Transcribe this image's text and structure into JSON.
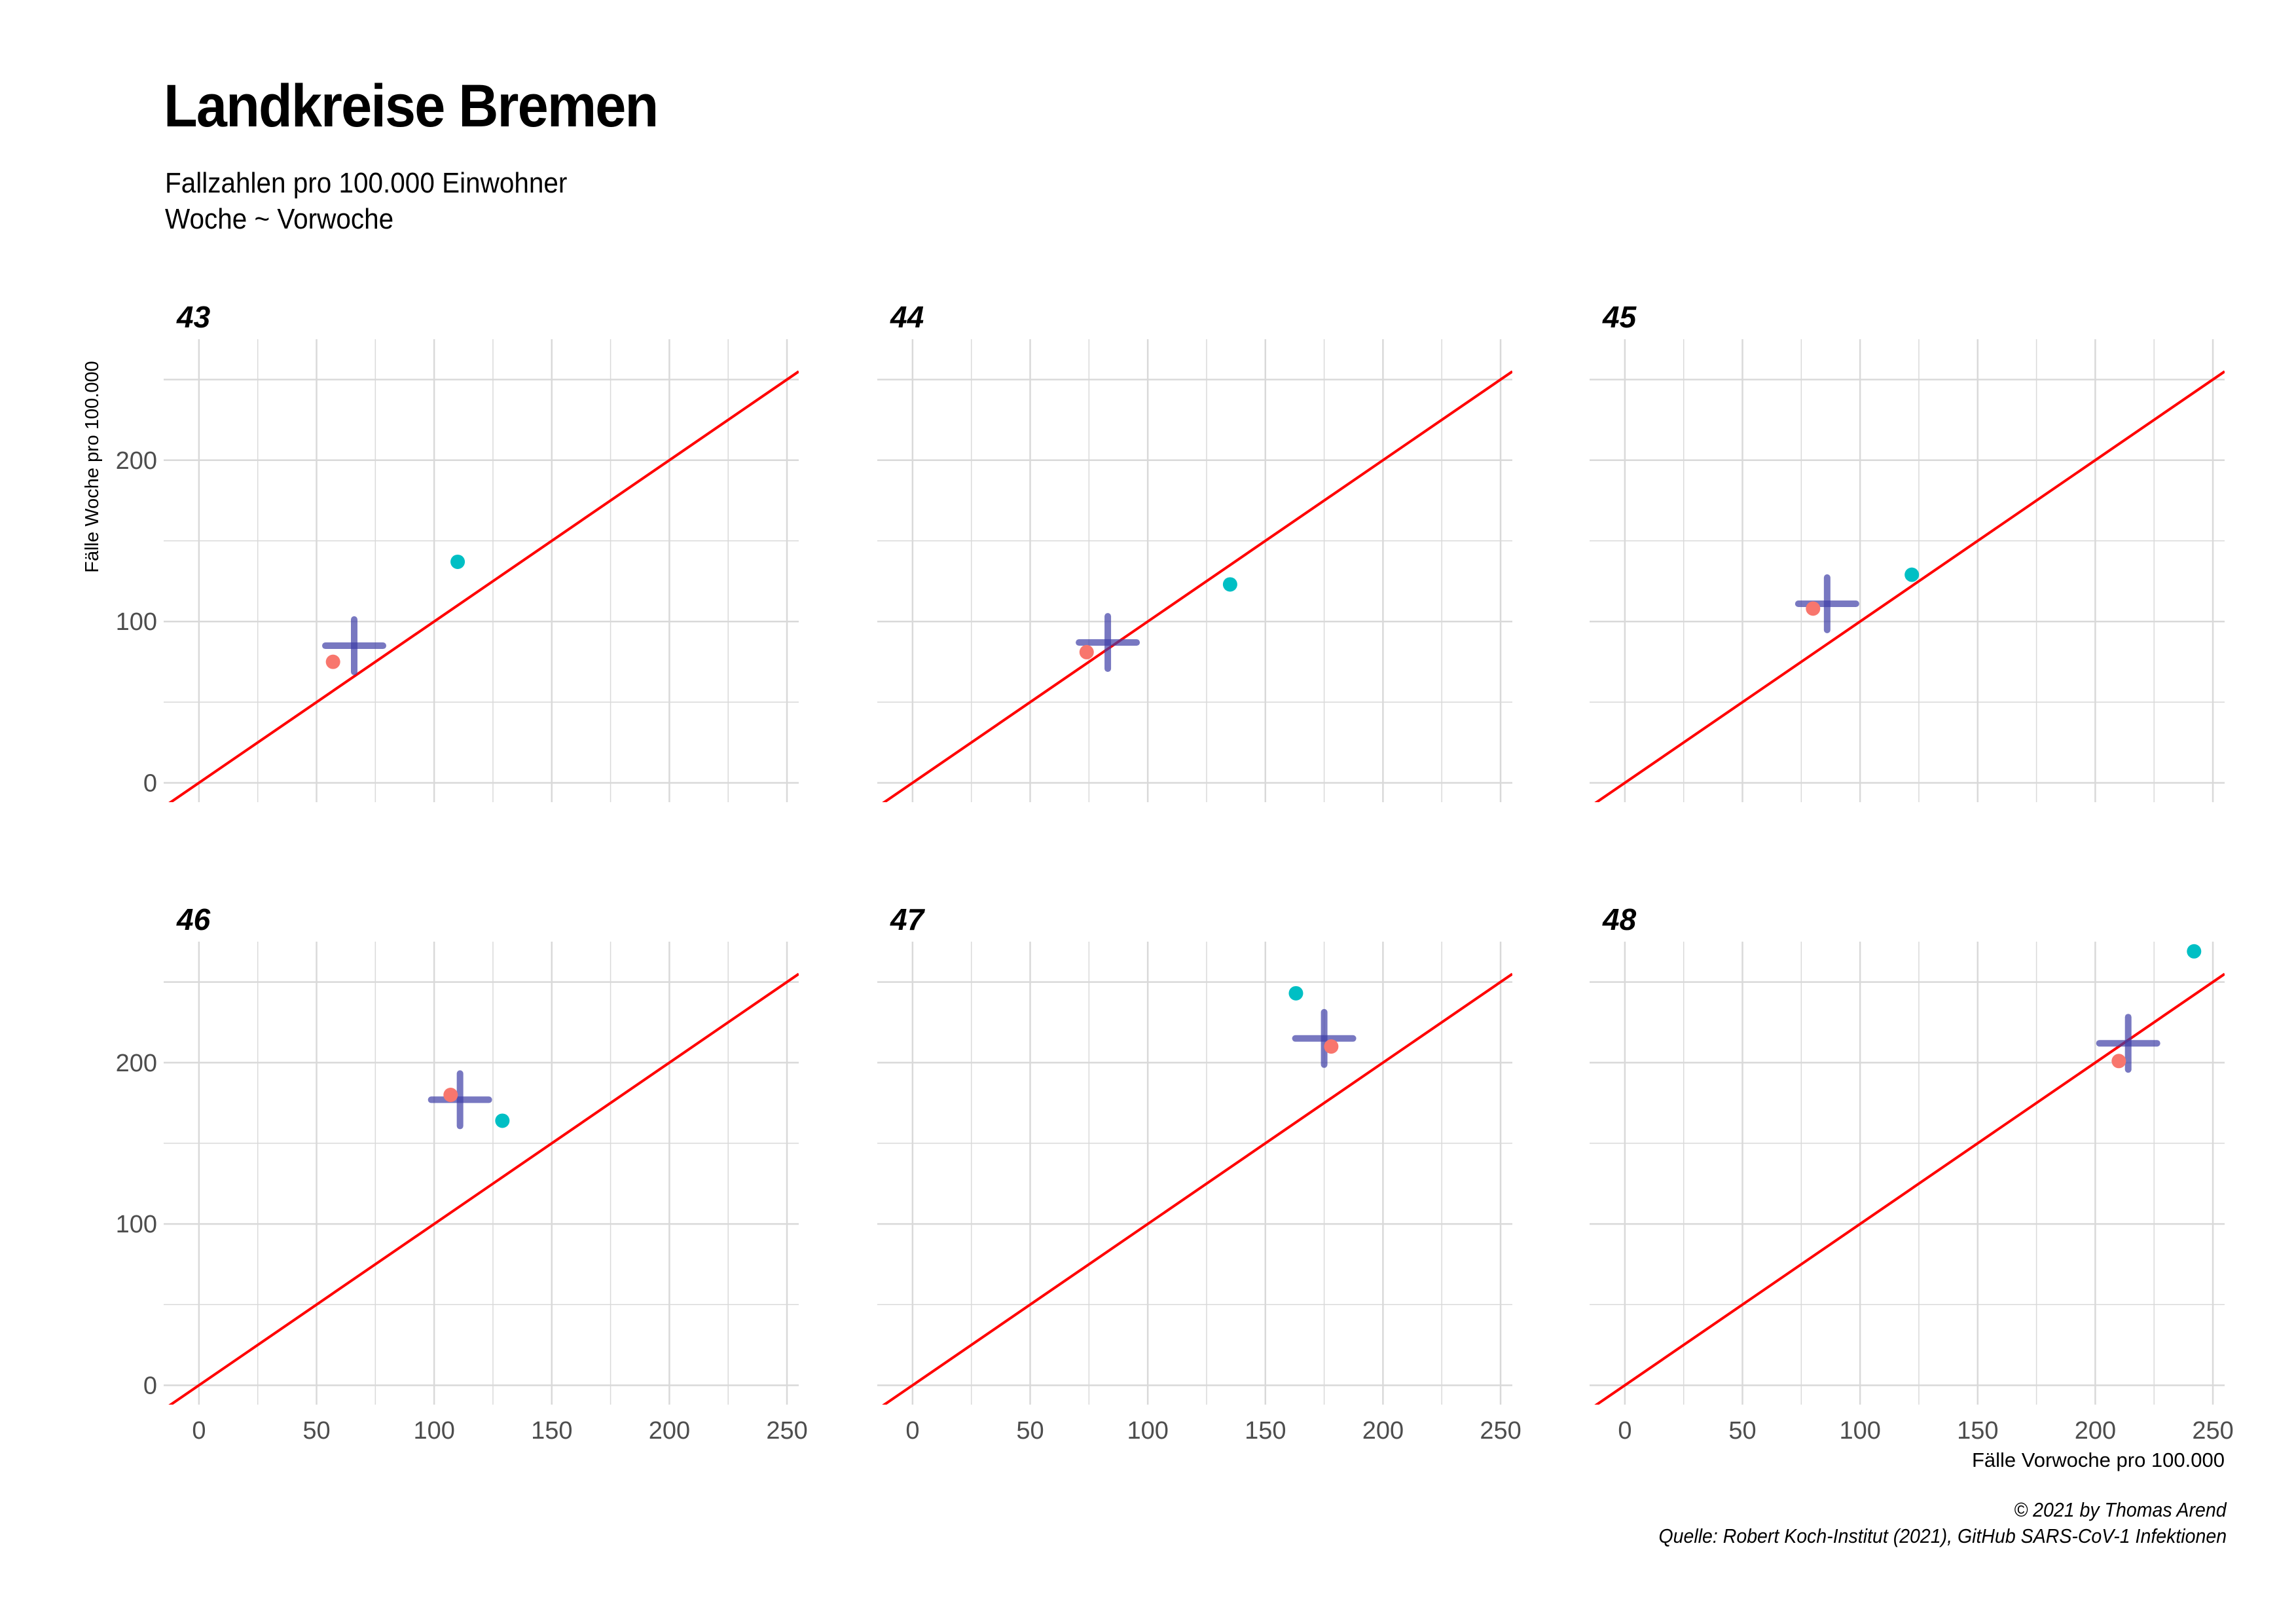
{
  "title": "Landkreise Bremen",
  "subtitle_lines": [
    "Fallzahlen pro 100.000 Einwohner",
    "Woche ~ Vorwoche"
  ],
  "caption_lines": [
    "© 2021 by Thomas Arend",
    "Quelle: Robert Koch-Institut (2021), GitHub SARS-CoV-1 Infektionen"
  ],
  "colors": {
    "diagonal": "#ff0000",
    "series_a": "#f8766d",
    "series_b": "#00bfc4",
    "mean_cross": "#3f3fa8",
    "grid": "#d9d9d9"
  },
  "chart_data": {
    "type": "scatter",
    "facet_by": "week",
    "xlabel": "Fälle Vorwoche pro 100.000",
    "ylabel": "Fälle Woche pro 100.000",
    "xlim": [
      -15,
      255
    ],
    "ylim": [
      -12,
      275
    ],
    "x_ticks": [
      0,
      50,
      100,
      150,
      200,
      250
    ],
    "y_ticks": [
      0,
      100,
      200
    ],
    "reference_line": "y = x",
    "grid": true,
    "legend": "none",
    "panels": [
      {
        "label": "43",
        "points": [
          {
            "x": 57,
            "y": 75
          },
          {
            "x": 110,
            "y": 137
          }
        ],
        "mean": {
          "x": 66,
          "y": 85
        }
      },
      {
        "label": "44",
        "points": [
          {
            "x": 74,
            "y": 81
          },
          {
            "x": 135,
            "y": 123
          }
        ],
        "mean": {
          "x": 83,
          "y": 87
        }
      },
      {
        "label": "45",
        "points": [
          {
            "x": 80,
            "y": 108
          },
          {
            "x": 122,
            "y": 129
          }
        ],
        "mean": {
          "x": 86,
          "y": 111
        }
      },
      {
        "label": "46",
        "points": [
          {
            "x": 107,
            "y": 180
          },
          {
            "x": 129,
            "y": 164
          }
        ],
        "mean": {
          "x": 111,
          "y": 177
        }
      },
      {
        "label": "47",
        "points": [
          {
            "x": 178,
            "y": 210
          },
          {
            "x": 163,
            "y": 243
          }
        ],
        "mean": {
          "x": 175,
          "y": 215
        }
      },
      {
        "label": "48",
        "points": [
          {
            "x": 210,
            "y": 201
          },
          {
            "x": 242,
            "y": 269
          }
        ],
        "mean": {
          "x": 214,
          "y": 212
        }
      }
    ]
  }
}
